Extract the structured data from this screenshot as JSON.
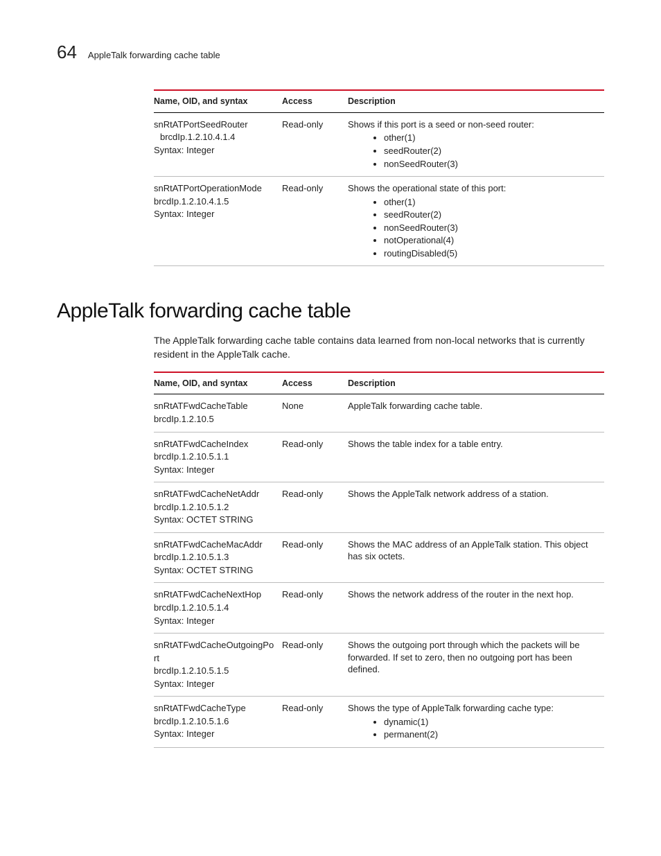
{
  "pageNumber": "64",
  "headerTitle": "AppleTalk forwarding cache table",
  "columns": {
    "name": "Name, OID, and syntax",
    "access": "Access",
    "desc": "Description"
  },
  "table1": [
    {
      "name": "snRtATPortSeedRouter",
      "oid": "brcdIp.1.2.10.4.1.4",
      "syntax": "Syntax: Integer",
      "oidIndent": true,
      "access": "Read-only",
      "desc": "Shows if this port is a seed or non-seed router:",
      "opts": [
        "other(1)",
        "seedRouter(2)",
        "nonSeedRouter(3)"
      ]
    },
    {
      "name": "snRtATPortOperationMode",
      "oid": "brcdIp.1.2.10.4.1.5",
      "syntax": "Syntax: Integer",
      "oidIndent": false,
      "access": "Read-only",
      "desc": "Shows the operational state of this port:",
      "opts": [
        "other(1)",
        "seedRouter(2)",
        "nonSeedRouter(3)",
        "notOperational(4)",
        "routingDisabled(5)"
      ]
    }
  ],
  "sectionTitle": "AppleTalk forwarding cache table",
  "intro": "The AppleTalk forwarding cache table contains data learned from non-local networks that is currently resident in the AppleTalk cache.",
  "table2": [
    {
      "name": "snRtATFwdCacheTable",
      "oid": "brcdIp.1.2.10.5",
      "syntax": "",
      "access": "None",
      "desc": "AppleTalk forwarding cache table.",
      "opts": []
    },
    {
      "name": "snRtATFwdCacheIndex",
      "oid": "brcdIp.1.2.10.5.1.1",
      "syntax": "Syntax: Integer",
      "access": "Read-only",
      "desc": "Shows the table index for a table entry.",
      "opts": []
    },
    {
      "name": "snRtATFwdCacheNetAddr",
      "oid": "brcdIp.1.2.10.5.1.2",
      "syntax": "Syntax: OCTET STRING",
      "access": "Read-only",
      "desc": "Shows the AppleTalk network address of a station.",
      "opts": []
    },
    {
      "name": "snRtATFwdCacheMacAddr",
      "oid": "brcdIp.1.2.10.5.1.3",
      "syntax": "Syntax: OCTET STRING",
      "access": "Read-only",
      "desc": "Shows the MAC address of an AppleTalk station. This object has six octets.",
      "opts": []
    },
    {
      "name": "snRtATFwdCacheNextHop",
      "oid": "brcdIp.1.2.10.5.1.4",
      "syntax": "Syntax: Integer",
      "access": "Read-only",
      "desc": "Shows the network address of the router in the next hop.",
      "opts": []
    },
    {
      "name": "snRtATFwdCacheOutgoingPort",
      "oid": "brcdIp.1.2.10.5.1.5",
      "syntax": "Syntax: Integer",
      "access": "Read-only",
      "desc": "Shows the outgoing port through which the packets will be forwarded. If set to zero, then no outgoing port has been defined.",
      "opts": []
    },
    {
      "name": "snRtATFwdCacheType",
      "oid": "brcdIp.1.2.10.5.1.6",
      "syntax": "Syntax: Integer",
      "access": "Read-only",
      "desc": "Shows the type of AppleTalk forwarding cache type:",
      "opts": [
        "dynamic(1)",
        "permanent(2)"
      ]
    }
  ]
}
